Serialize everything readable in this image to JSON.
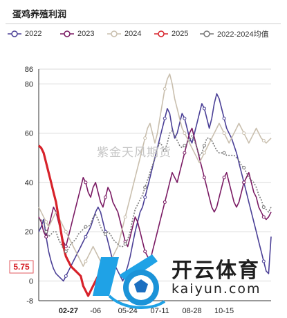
{
  "header": {
    "title": "蛋鸡养殖利润"
  },
  "watermark": "紫金天风期货",
  "logo": {
    "name": "开云体育",
    "url": "kaiyun.com"
  },
  "colors": {
    "s2022": "#4a3f96",
    "s2023": "#7a1a63",
    "s2024": "#c9bfae",
    "s2025": "#d7222a",
    "avg": "#777777",
    "grid": "#d9d9d9",
    "highlight": "#d7222a"
  },
  "chart_data": {
    "type": "line",
    "title": "蛋鸡养殖利润",
    "xlabel": "",
    "ylabel": "",
    "x_tick_labels": [
      "02-27",
      "-06",
      "05-24",
      "07-11",
      "08-28",
      "10-15"
    ],
    "y_tick_labels": [
      "-8",
      "0",
      "20",
      "40",
      "60",
      "80",
      "86"
    ],
    "ylim": [
      -8,
      86
    ],
    "grid": true,
    "legend_position": "top",
    "current_value_label": "5.75",
    "series": [
      {
        "name": "2022",
        "color_key": "s2022",
        "values": [
          20,
          22,
          25,
          18,
          12,
          8,
          5,
          3,
          2,
          1,
          0,
          2,
          4,
          6,
          8,
          10,
          12,
          14,
          16,
          18,
          20,
          22,
          25,
          28,
          30,
          28,
          24,
          20,
          16,
          12,
          8,
          6,
          4,
          2,
          0,
          3,
          6,
          10,
          15,
          20,
          24,
          28,
          30,
          34,
          38,
          42,
          46,
          50,
          54,
          58,
          62,
          66,
          70,
          68,
          62,
          58,
          60,
          64,
          68,
          66,
          62,
          58,
          56,
          60,
          64,
          68,
          72,
          70,
          66,
          62,
          66,
          72,
          76,
          74,
          70,
          66,
          62,
          60,
          58,
          55,
          52,
          48,
          44,
          40,
          36,
          32,
          28,
          24,
          20,
          16,
          12,
          8,
          4,
          3,
          18
        ]
      },
      {
        "name": "2023",
        "color_key": "s2023",
        "values": [
          26,
          24,
          20,
          18,
          22,
          26,
          30,
          28,
          24,
          20,
          16,
          14,
          18,
          22,
          26,
          30,
          34,
          38,
          42,
          40,
          36,
          34,
          38,
          40,
          36,
          32,
          30,
          34,
          38,
          36,
          32,
          30,
          28,
          24,
          20,
          16,
          14,
          18,
          22,
          26,
          24,
          20,
          16,
          12,
          10,
          8,
          12,
          16,
          20,
          24,
          28,
          32,
          36,
          40,
          44,
          42,
          40,
          44,
          48,
          52,
          56,
          60,
          62,
          58,
          54,
          50,
          46,
          42,
          38,
          34,
          30,
          28,
          30,
          34,
          38,
          42,
          44,
          40,
          36,
          32,
          30,
          32,
          36,
          40,
          42,
          44,
          40,
          36,
          34,
          30,
          28,
          26,
          25,
          26,
          28
        ]
      },
      {
        "name": "2024",
        "color_key": "s2024",
        "values": [
          30,
          28,
          26,
          24,
          22,
          24,
          26,
          28,
          26,
          24,
          22,
          20,
          18,
          16,
          14,
          12,
          10,
          8,
          6,
          8,
          10,
          12,
          14,
          12,
          10,
          8,
          6,
          4,
          6,
          8,
          10,
          12,
          14,
          18,
          22,
          26,
          30,
          34,
          38,
          42,
          46,
          50,
          54,
          58,
          62,
          64,
          60,
          56,
          60,
          66,
          72,
          78,
          82,
          84,
          80,
          74,
          70,
          66,
          62,
          60,
          58,
          56,
          54,
          52,
          50,
          48,
          50,
          52,
          54,
          56,
          58,
          60,
          62,
          64,
          62,
          60,
          58,
          56,
          58,
          60,
          62,
          64,
          62,
          60,
          58,
          56,
          58,
          60,
          62,
          60,
          58,
          57,
          56,
          57,
          58
        ]
      },
      {
        "name": "2025",
        "color_key": "s2025",
        "values": [
          55,
          54,
          52,
          48,
          44,
          40,
          36,
          32,
          26,
          20,
          14,
          10,
          8,
          6,
          5,
          4,
          3,
          2,
          -2,
          -4,
          -6,
          -4,
          -2,
          0,
          2,
          5.75
        ]
      },
      {
        "name": "2022-2024均值",
        "color_key": "avg",
        "dashed": true,
        "values": [
          25,
          25,
          24,
          20,
          18,
          19,
          20,
          20,
          17,
          15,
          13,
          12,
          13,
          15,
          16,
          17,
          19,
          20,
          21,
          22,
          22,
          23,
          26,
          27,
          25,
          22,
          20,
          19,
          20,
          19,
          17,
          16,
          15,
          14,
          14,
          15,
          17,
          20,
          25,
          29,
          31,
          33,
          35,
          38,
          41,
          44,
          47,
          50,
          54,
          56,
          55,
          53,
          56,
          60,
          61,
          59,
          57,
          55,
          54,
          55,
          56,
          57,
          59,
          57,
          54,
          51,
          52,
          55,
          58,
          58,
          57,
          55,
          53,
          52,
          52,
          52,
          51,
          51,
          51,
          51,
          50,
          49,
          47,
          46,
          44,
          42,
          41,
          40,
          38,
          35,
          33,
          30,
          29,
          28,
          30
        ]
      }
    ]
  }
}
